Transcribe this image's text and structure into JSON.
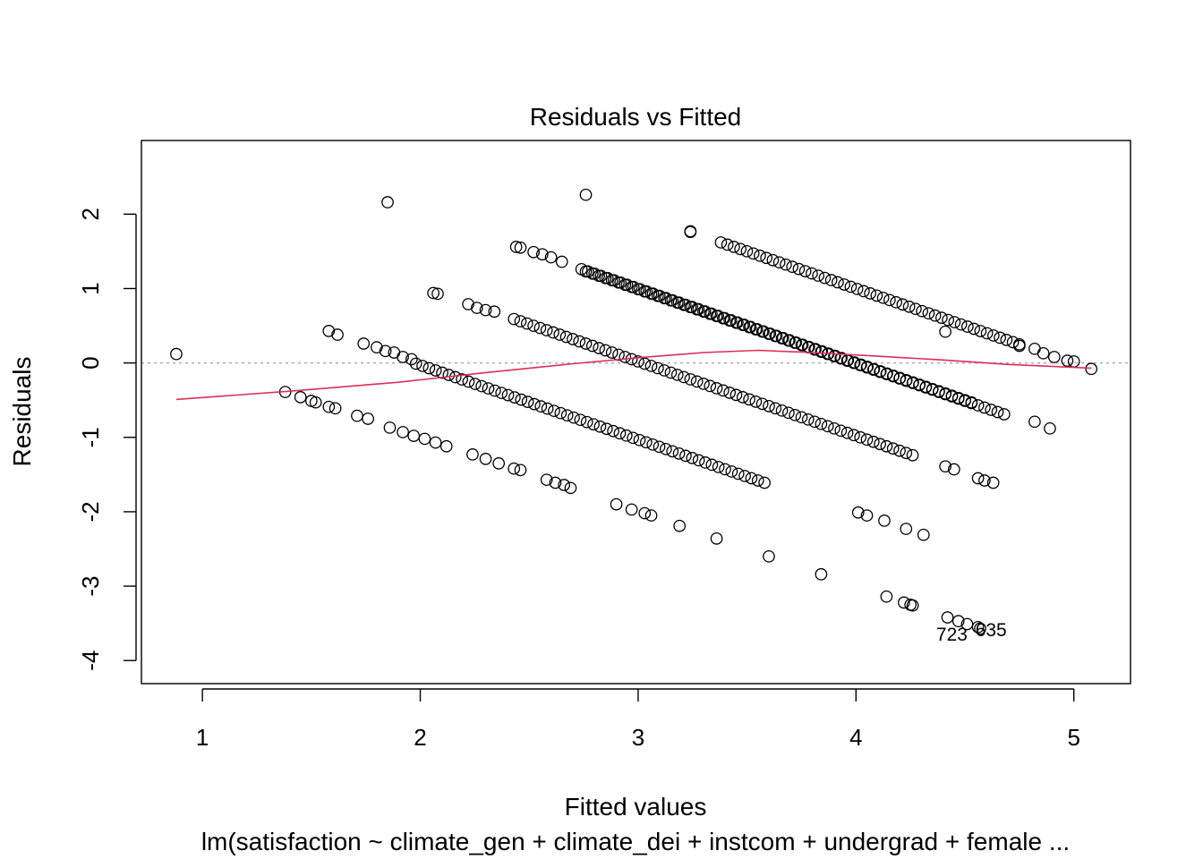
{
  "chart_data": {
    "type": "scatter",
    "title": "Residuals vs Fitted",
    "xlabel": "Fitted values",
    "ylabel": "Residuals",
    "subtitle": "lm(satisfaction ~ climate_gen + climate_dei + instcom + undergrad + female  ...",
    "xlim": [
      0.72,
      5.26
    ],
    "ylim": [
      -4.31,
      2.99
    ],
    "x_ticks": [
      1,
      2,
      3,
      4,
      5
    ],
    "x_tick_labels": [
      "1",
      "2",
      "3",
      "4",
      "5"
    ],
    "y_ticks": [
      -4,
      -3,
      -2,
      -1,
      0,
      1,
      2
    ],
    "y_tick_labels": [
      "-4",
      "-3",
      "-2",
      "-1",
      "0",
      "1",
      "2"
    ],
    "grid": false,
    "reference_line": {
      "y": 0,
      "style": "dotted",
      "color": "#aaaaaa"
    },
    "point_color": "#000000",
    "smoother_color": "#dc2f54",
    "series": [
      {
        "points": [
          [
            0.88,
            0.12
          ],
          [
            1.85,
            2.16
          ],
          [
            2.76,
            2.26
          ],
          [
            3.24,
            1.77
          ],
          [
            3.24,
            1.76
          ],
          [
            1.38,
            -0.39
          ],
          [
            1.45,
            -0.46
          ],
          [
            1.5,
            -0.51
          ],
          [
            1.52,
            -0.53
          ],
          [
            1.58,
            -0.59
          ],
          [
            1.61,
            -0.61
          ],
          [
            1.58,
            0.43
          ],
          [
            1.62,
            0.38
          ],
          [
            1.74,
            0.26
          ],
          [
            1.8,
            0.21
          ],
          [
            1.84,
            0.16
          ],
          [
            1.88,
            0.14
          ],
          [
            1.92,
            0.08
          ],
          [
            1.96,
            0.05
          ],
          [
            2.06,
            0.94
          ],
          [
            2.08,
            0.93
          ],
          [
            2.22,
            0.79
          ],
          [
            2.26,
            0.74
          ],
          [
            2.3,
            0.71
          ],
          [
            2.34,
            0.69
          ],
          [
            2.44,
            1.56
          ],
          [
            2.46,
            1.55
          ],
          [
            2.52,
            1.49
          ],
          [
            2.56,
            1.46
          ],
          [
            2.6,
            1.42
          ],
          [
            2.65,
            1.36
          ],
          [
            1.71,
            -0.71
          ],
          [
            1.76,
            -0.75
          ],
          [
            1.86,
            -0.87
          ],
          [
            1.92,
            -0.93
          ],
          [
            1.97,
            -0.98
          ],
          [
            2.02,
            -1.02
          ],
          [
            2.07,
            -1.07
          ],
          [
            2.12,
            -1.12
          ],
          [
            2.24,
            -1.23
          ],
          [
            2.3,
            -1.29
          ],
          [
            2.36,
            -1.35
          ],
          [
            2.43,
            -1.42
          ],
          [
            2.46,
            -1.44
          ],
          [
            2.58,
            -1.57
          ],
          [
            2.62,
            -1.61
          ],
          [
            2.66,
            -1.64
          ],
          [
            2.69,
            -1.68
          ],
          [
            2.9,
            -1.9
          ],
          [
            2.97,
            -1.97
          ],
          [
            3.03,
            -2.02
          ],
          [
            3.06,
            -2.05
          ],
          [
            3.19,
            -2.19
          ],
          [
            3.36,
            -2.36
          ],
          [
            3.6,
            -2.6
          ],
          [
            3.84,
            -2.84
          ],
          [
            4.14,
            -3.14
          ],
          [
            4.22,
            -3.22
          ],
          [
            4.25,
            -3.25
          ],
          [
            4.26,
            -3.26
          ],
          [
            4.42,
            -3.42
          ],
          [
            4.47,
            -3.47
          ],
          [
            4.51,
            -3.51
          ],
          [
            4.56,
            -3.55
          ],
          [
            4.57,
            -3.57
          ],
          [
            4.23,
            -2.23
          ],
          [
            4.31,
            -2.31
          ],
          [
            4.13,
            -2.12
          ],
          [
            4.05,
            -2.05
          ],
          [
            4.01,
            -2.01
          ],
          [
            4.41,
            -1.39
          ],
          [
            4.45,
            -1.43
          ],
          [
            4.56,
            -1.55
          ],
          [
            4.59,
            -1.58
          ],
          [
            4.63,
            -1.61
          ],
          [
            4.41,
            0.42
          ],
          [
            4.82,
            -0.79
          ],
          [
            4.89,
            -0.88
          ],
          [
            4.75,
            0.23
          ],
          [
            4.82,
            0.19
          ],
          [
            4.86,
            0.13
          ],
          [
            4.91,
            0.08
          ],
          [
            4.97,
            0.03
          ],
          [
            5.0,
            0.02
          ],
          [
            5.08,
            -0.08
          ]
        ],
        "bands": [
          {
            "x_from": 1.98,
            "x_to": 3.58,
            "offset": 1.97
          },
          {
            "x_from": 2.43,
            "x_to": 4.26,
            "offset": 3.02
          },
          {
            "x_from": 2.74,
            "x_to": 4.53,
            "offset": 4.0
          },
          {
            "x_from": 2.76,
            "x_to": 4.68,
            "offset": 3.99
          },
          {
            "x_from": 3.38,
            "x_to": 4.75,
            "offset": 5.0
          }
        ]
      }
    ],
    "smoother": {
      "x": [
        0.88,
        1.4,
        1.9,
        2.3,
        2.7,
        3.0,
        3.3,
        3.55,
        3.8,
        4.1,
        4.4,
        4.7,
        5.08
      ],
      "y": [
        -0.49,
        -0.38,
        -0.26,
        -0.13,
        -0.01,
        0.07,
        0.14,
        0.17,
        0.14,
        0.09,
        0.04,
        -0.02,
        -0.07
      ]
    },
    "outlier_labels": [
      {
        "text": "723",
        "x": 4.44,
        "y": -3.65
      },
      {
        "text": "635",
        "x": 4.62,
        "y": -3.59
      }
    ]
  }
}
